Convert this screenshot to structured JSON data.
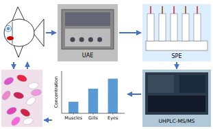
{
  "chart_data": {
    "type": "bar",
    "categories": [
      "Muscles",
      "Gills",
      "Eyes"
    ],
    "values": [
      1.5,
      3.2,
      4.5
    ],
    "color": "#5b9bd5",
    "ylabel": "Concentration",
    "ylim": [
      0,
      5.5
    ],
    "yticks": [],
    "tick_labels": "x",
    "annotations": [
      "UAE",
      "SPE",
      "UHPLC-MS/MS"
    ]
  }
}
